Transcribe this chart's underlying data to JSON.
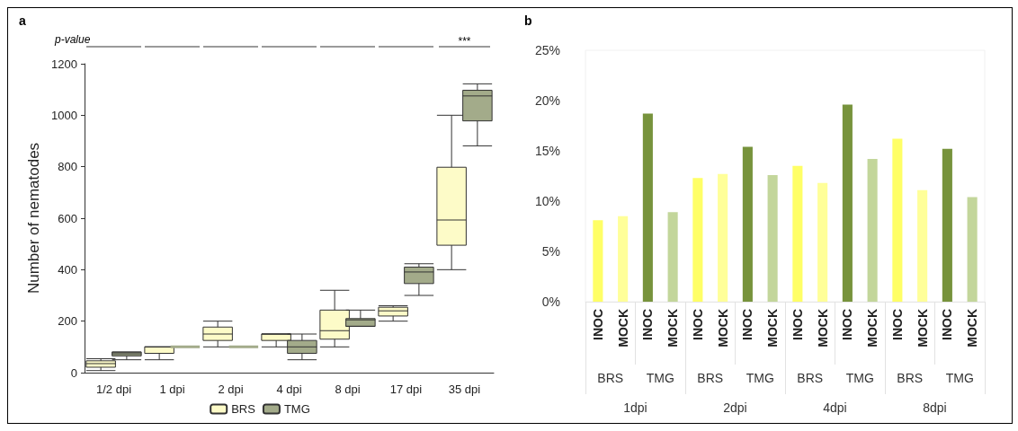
{
  "chart_data": [
    {
      "type": "box",
      "title": "a",
      "ylabel": "Number of nematodes",
      "categories": [
        "1/2 dpi",
        "1 dpi",
        "2 dpi",
        "4 dpi",
        "8 dpi",
        "17 dpi",
        "35 dpi"
      ],
      "series": [
        {
          "name": "BRS",
          "color": "#fdfbc8",
          "boxes": [
            {
              "low": 8,
              "q1": 21,
              "median": 35,
              "q3": 46,
              "high": 54
            },
            {
              "low": 50,
              "q1": 75,
              "median": 100,
              "q3": 100,
              "high": 100
            },
            {
              "low": 100,
              "q1": 125,
              "median": 150,
              "q3": 177,
              "high": 200
            },
            {
              "low": 100,
              "q1": 125,
              "median": 150,
              "q3": 150,
              "high": 150
            },
            {
              "low": 100,
              "q1": 130,
              "median": 163,
              "q3": 243,
              "high": 320
            },
            {
              "low": 200,
              "q1": 220,
              "median": 240,
              "q3": 254,
              "high": 260
            },
            {
              "low": 400,
              "q1": 495,
              "median": 593,
              "q3": 798,
              "high": 1000
            }
          ]
        },
        {
          "name": "TMG",
          "color": "#a3ab8a",
          "boxes": [
            {
              "low": 50,
              "q1": 65,
              "median": 73,
              "q3": 80,
              "high": 80
            },
            {
              "low": 100,
              "q1": 100,
              "median": 100,
              "q3": 100,
              "high": 100
            },
            {
              "low": 100,
              "q1": 100,
              "median": 100,
              "q3": 100,
              "high": 100
            },
            {
              "low": 50,
              "q1": 75,
              "median": 100,
              "q3": 125,
              "high": 150
            },
            {
              "low": 180,
              "q1": 180,
              "median": 205,
              "q3": 210,
              "high": 243
            },
            {
              "low": 300,
              "q1": 346,
              "median": 391,
              "q3": 410,
              "high": 423
            },
            {
              "low": 881,
              "q1": 978,
              "median": 1075,
              "q3": 1097,
              "high": 1122
            }
          ]
        }
      ],
      "ylim": [
        0,
        1200
      ],
      "yticks": [
        0,
        200,
        400,
        600,
        800,
        1000,
        1200
      ],
      "grid": false,
      "legend": "bottom",
      "annotations": [
        "p-value",
        "***"
      ]
    },
    {
      "type": "bar",
      "title": "b",
      "categories": [
        "INOC",
        "MOCK",
        "INOC",
        "MOCK",
        "INOC",
        "MOCK",
        "INOC",
        "MOCK",
        "INOC",
        "MOCK",
        "INOC",
        "MOCK",
        "INOC",
        "MOCK",
        "INOC",
        "MOCK"
      ],
      "values": [
        8.1,
        8.5,
        18.7,
        8.9,
        12.3,
        12.7,
        15.4,
        12.6,
        13.5,
        11.8,
        19.6,
        14.2,
        16.2,
        11.1,
        15.2,
        10.4
      ],
      "colors": [
        "#ffff66",
        "#ffff99",
        "#77933c",
        "#c3d69b",
        "#ffff66",
        "#ffff99",
        "#77933c",
        "#c3d69b",
        "#ffff66",
        "#ffff99",
        "#77933c",
        "#c3d69b",
        "#ffff66",
        "#ffff99",
        "#77933c",
        "#c3d69b"
      ],
      "ylim": [
        0,
        25
      ],
      "yticks": [
        {
          "value": 0,
          "label": "0%"
        },
        {
          "value": 5,
          "label": "5%"
        },
        {
          "value": 10,
          "label": "10%"
        },
        {
          "value": 15,
          "label": "15%"
        },
        {
          "value": 20,
          "label": "20%"
        },
        {
          "value": 25,
          "label": "25%"
        }
      ],
      "grid": false,
      "annotations": [
        "BRS",
        "TMG",
        "BRS",
        "TMG",
        "BRS",
        "TMG",
        "BRS",
        "TMG",
        "1dpi",
        "2dpi",
        "4dpi",
        "8dpi"
      ]
    }
  ]
}
